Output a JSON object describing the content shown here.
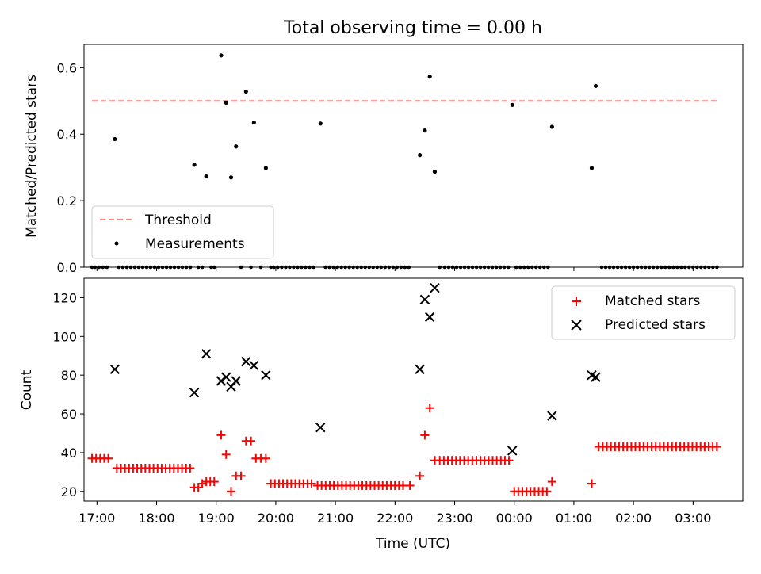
{
  "chart_data": [
    {
      "type": "scatter",
      "title": "Total observing time = 0.00 h",
      "xlabel": "",
      "ylabel": "Matched/Predicted stars",
      "xlim": [
        "16:47",
        "03:50"
      ],
      "ylim": [
        0,
        0.67
      ],
      "yticks": [
        "0.0",
        "0.2",
        "0.4",
        "0.6"
      ],
      "grid": false,
      "legend": "lower-left",
      "threshold": {
        "name": "Threshold",
        "y": 0.5,
        "x": [
          "16:55",
          "03:25"
        ],
        "color": "#ff7f7f"
      },
      "series": [
        {
          "name": "Measurements",
          "color": "#000000",
          "points": [
            [
              "17:18",
              0.385
            ],
            [
              "18:38",
              0.308
            ],
            [
              "18:50",
              0.273
            ],
            [
              "19:05",
              0.637
            ],
            [
              "19:10",
              0.495
            ],
            [
              "19:15",
              0.27
            ],
            [
              "19:20",
              0.363
            ],
            [
              "19:30",
              0.528
            ],
            [
              "19:38",
              0.435
            ],
            [
              "19:50",
              0.298
            ],
            [
              "20:45",
              0.432
            ],
            [
              "22:25",
              0.337
            ],
            [
              "22:30",
              0.411
            ],
            [
              "22:35",
              0.573
            ],
            [
              "22:40",
              0.287
            ],
            [
              "23:58",
              0.488
            ],
            [
              "00:38",
              0.422
            ],
            [
              "01:18",
              0.298
            ],
            [
              "01:22",
              0.545
            ]
          ],
          "zero_times": [
            "16:55",
            "16:58",
            "17:02",
            "17:06",
            "17:10",
            "17:22",
            "17:26",
            "17:30",
            "17:34",
            "17:38",
            "17:42",
            "17:46",
            "17:50",
            "17:54",
            "17:58",
            "18:02",
            "18:06",
            "18:10",
            "18:14",
            "18:18",
            "18:22",
            "18:26",
            "18:30",
            "18:34",
            "18:42",
            "18:46",
            "18:55",
            "18:58",
            "19:25",
            "19:35",
            "19:45",
            "19:55",
            "19:58",
            "20:02",
            "20:06",
            "20:10",
            "20:14",
            "20:18",
            "20:22",
            "20:26",
            "20:30",
            "20:34",
            "20:38",
            "20:50",
            "20:54",
            "20:58",
            "21:02",
            "21:06",
            "21:10",
            "21:14",
            "21:18",
            "21:22",
            "21:26",
            "21:30",
            "21:34",
            "21:38",
            "21:42",
            "21:46",
            "21:50",
            "21:54",
            "21:58",
            "22:02",
            "22:06",
            "22:10",
            "22:14",
            "22:45",
            "22:50",
            "22:54",
            "22:58",
            "23:02",
            "23:06",
            "23:10",
            "23:14",
            "23:18",
            "23:22",
            "23:26",
            "23:30",
            "23:34",
            "23:38",
            "23:42",
            "23:46",
            "23:50",
            "23:54",
            "00:02",
            "00:06",
            "00:10",
            "00:14",
            "00:18",
            "00:22",
            "00:26",
            "00:30",
            "00:34",
            "01:28",
            "01:32",
            "01:36",
            "01:40",
            "01:44",
            "01:48",
            "01:52",
            "01:56",
            "02:00",
            "02:04",
            "02:08",
            "02:12",
            "02:16",
            "02:20",
            "02:24",
            "02:28",
            "02:32",
            "02:36",
            "02:40",
            "02:44",
            "02:48",
            "02:52",
            "02:56",
            "03:00",
            "03:04",
            "03:08",
            "03:12",
            "03:16",
            "03:20",
            "03:24"
          ]
        }
      ]
    },
    {
      "type": "scatter",
      "title": "",
      "xlabel": "Time (UTC)",
      "ylabel": "Count",
      "xlim": [
        "16:47",
        "03:50"
      ],
      "ylim": [
        15,
        130
      ],
      "yticks": [
        "20",
        "40",
        "60",
        "80",
        "100",
        "120"
      ],
      "xticks": [
        "17:00",
        "18:00",
        "19:00",
        "20:00",
        "21:00",
        "22:00",
        "23:00",
        "00:00",
        "01:00",
        "02:00",
        "03:00"
      ],
      "grid": false,
      "legend": "upper-right",
      "series": [
        {
          "name": "Matched stars",
          "marker": "plus",
          "color": "#ff0000",
          "segments": [
            {
              "from": "16:55",
              "to": "17:15",
              "y": 37
            },
            {
              "from": "17:20",
              "to": "18:35",
              "y": 32
            },
            {
              "from": "19:55",
              "to": "20:38",
              "y": 24
            },
            {
              "from": "20:42",
              "to": "22:12",
              "y": 23
            },
            {
              "from": "22:45",
              "to": "23:55",
              "y": 36
            },
            {
              "from": "00:00",
              "to": "00:35",
              "y": 20
            },
            {
              "from": "01:25",
              "to": "03:25",
              "y": 43
            }
          ],
          "points": [
            [
              "18:38",
              22
            ],
            [
              "18:42",
              22
            ],
            [
              "18:46",
              24
            ],
            [
              "18:50",
              25
            ],
            [
              "18:54",
              25
            ],
            [
              "18:58",
              25
            ],
            [
              "19:05",
              49
            ],
            [
              "19:10",
              39
            ],
            [
              "19:15",
              20
            ],
            [
              "19:20",
              28
            ],
            [
              "19:25",
              28
            ],
            [
              "19:30",
              46
            ],
            [
              "19:35",
              46
            ],
            [
              "19:40",
              37
            ],
            [
              "19:45",
              37
            ],
            [
              "19:50",
              37
            ],
            [
              "22:15",
              23
            ],
            [
              "22:25",
              28
            ],
            [
              "22:30",
              49
            ],
            [
              "22:35",
              63
            ],
            [
              "22:40",
              36
            ],
            [
              "00:38",
              25
            ],
            [
              "01:18",
              24
            ]
          ]
        },
        {
          "name": "Predicted stars",
          "marker": "x",
          "color": "#000000",
          "points": [
            [
              "17:18",
              83
            ],
            [
              "18:38",
              71
            ],
            [
              "18:50",
              91
            ],
            [
              "19:05",
              77
            ],
            [
              "19:10",
              79
            ],
            [
              "19:15",
              74
            ],
            [
              "19:20",
              77
            ],
            [
              "19:30",
              87
            ],
            [
              "19:38",
              85
            ],
            [
              "19:50",
              80
            ],
            [
              "20:45",
              53
            ],
            [
              "22:25",
              83
            ],
            [
              "22:30",
              119
            ],
            [
              "22:35",
              110
            ],
            [
              "22:40",
              125
            ],
            [
              "23:58",
              41
            ],
            [
              "00:38",
              59
            ],
            [
              "01:18",
              80
            ],
            [
              "01:22",
              79
            ]
          ]
        }
      ]
    }
  ]
}
